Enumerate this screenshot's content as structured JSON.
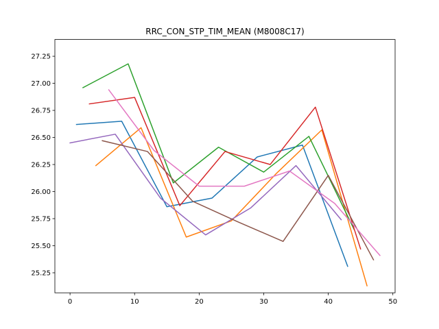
{
  "chart_data": {
    "type": "line",
    "title": "RRC_CON_STP_TIM_MEAN (M8008C17)",
    "xlabel": "",
    "ylabel": "",
    "xlim": [
      -2.35,
      50.35
    ],
    "ylim": [
      25.065,
      27.405
    ],
    "x_ticks": [
      0,
      10,
      20,
      30,
      40,
      50
    ],
    "y_ticks": [
      25.25,
      25.5,
      25.75,
      26.0,
      26.25,
      26.5,
      26.75,
      27.0,
      27.25
    ],
    "x_tick_labels": [
      "0",
      "10",
      "20",
      "30",
      "40",
      "50"
    ],
    "y_tick_labels": [
      "25.25",
      "25.50",
      "25.75",
      "26.00",
      "26.25",
      "26.50",
      "26.75",
      "27.00",
      "27.25"
    ],
    "grid": false,
    "legend": "none",
    "series": [
      {
        "color": "#1f77b4",
        "x": [
          1,
          8,
          15,
          22,
          29,
          36,
          43
        ],
        "y": [
          26.62,
          26.65,
          25.86,
          25.94,
          26.32,
          26.43,
          25.31
        ]
      },
      {
        "color": "#ff7f0e",
        "x": [
          4,
          11,
          18,
          25,
          32,
          39,
          46
        ],
        "y": [
          26.24,
          26.59,
          25.58,
          25.73,
          26.17,
          26.57,
          25.13
        ]
      },
      {
        "color": "#2ca02c",
        "x": [
          2,
          9,
          16,
          23,
          30,
          37,
          44
        ],
        "y": [
          26.96,
          27.18,
          26.08,
          26.41,
          26.18,
          26.51,
          25.65
        ]
      },
      {
        "color": "#d62728",
        "x": [
          3,
          10,
          17,
          24,
          31,
          38,
          45
        ],
        "y": [
          26.81,
          26.87,
          25.87,
          26.37,
          26.25,
          26.78,
          25.47
        ]
      },
      {
        "color": "#9467bd",
        "x": [
          0,
          7,
          14,
          21,
          28,
          35,
          42
        ],
        "y": [
          26.45,
          26.53,
          25.94,
          25.6,
          25.85,
          26.24,
          25.74
        ]
      },
      {
        "color": "#8c564b",
        "x": [
          5,
          12,
          19,
          26,
          33,
          40,
          47
        ],
        "y": [
          26.47,
          26.37,
          25.91,
          25.72,
          25.54,
          26.15,
          25.37
        ]
      },
      {
        "color": "#e377c2",
        "x": [
          6,
          13,
          20,
          27,
          34,
          41,
          48
        ],
        "y": [
          26.94,
          26.38,
          26.05,
          26.05,
          26.19,
          25.89,
          25.41
        ]
      }
    ]
  }
}
